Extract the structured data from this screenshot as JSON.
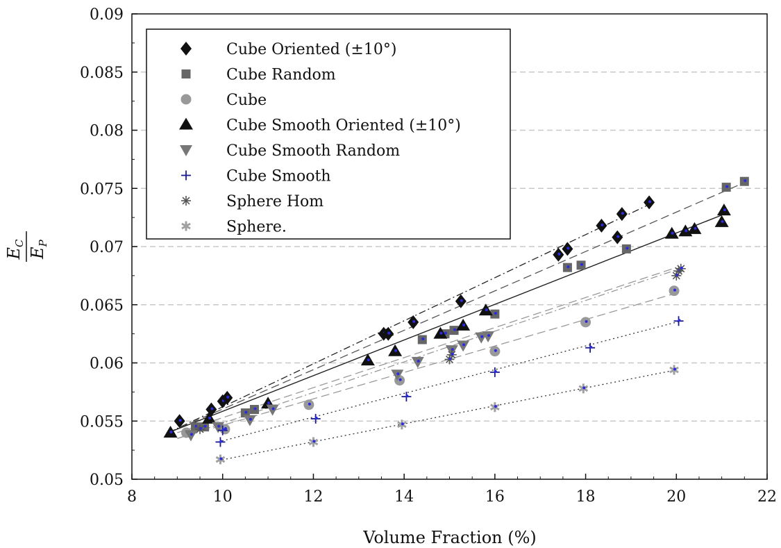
{
  "chart_data": {
    "type": "scatter",
    "xlabel": "Volume Fraction (%)",
    "ylabel_num": "E",
    "ylabel_num_sub": "C",
    "ylabel_den": "E",
    "ylabel_den_sub": "P",
    "xlim": [
      8,
      22
    ],
    "ylim": [
      0.05,
      0.09
    ],
    "xticks": [
      8,
      10,
      12,
      14,
      16,
      18,
      20,
      22
    ],
    "xtick_labels": [
      "8",
      "10",
      "12",
      "14",
      "16",
      "18",
      "20",
      "22"
    ],
    "yticks": [
      0.05,
      0.055,
      0.06,
      0.065,
      0.07,
      0.075,
      0.08,
      0.085,
      0.09
    ],
    "ytick_labels": [
      "0.05",
      "0.055",
      "0.06",
      "0.065",
      "0.07",
      "0.075",
      "0.08",
      "0.085",
      "0.09"
    ],
    "grid": "horizontal-dashed",
    "legend_position": "top-left",
    "series": [
      {
        "name": "Cube Oriented (±10°)",
        "marker": "diamond",
        "color": "#111111",
        "line": {
          "style": "dashdot",
          "from": [
            8.8,
            0.054
          ],
          "to": [
            19.5,
            0.0738
          ]
        },
        "points": [
          [
            9.05,
            0.055
          ],
          [
            9.75,
            0.056
          ],
          [
            10.0,
            0.0567
          ],
          [
            10.1,
            0.057
          ],
          [
            13.55,
            0.0625
          ],
          [
            13.65,
            0.0625
          ],
          [
            14.2,
            0.0635
          ],
          [
            15.25,
            0.0653
          ],
          [
            17.4,
            0.0693
          ],
          [
            17.6,
            0.0698
          ],
          [
            18.35,
            0.0718
          ],
          [
            18.7,
            0.0708
          ],
          [
            18.8,
            0.0728
          ],
          [
            19.4,
            0.0738
          ]
        ]
      },
      {
        "name": "Cube Random",
        "marker": "square",
        "color": "#666666",
        "line": {
          "style": "dashed",
          "from": [
            8.8,
            0.054
          ],
          "to": [
            21.5,
            0.0755
          ]
        },
        "points": [
          [
            9.4,
            0.0545
          ],
          [
            9.6,
            0.0545
          ],
          [
            10.5,
            0.0557
          ],
          [
            10.7,
            0.056
          ],
          [
            14.4,
            0.062
          ],
          [
            14.9,
            0.0625
          ],
          [
            15.1,
            0.0628
          ],
          [
            16.0,
            0.0642
          ],
          [
            17.6,
            0.0682
          ],
          [
            17.9,
            0.0684
          ],
          [
            18.9,
            0.0698
          ],
          [
            21.1,
            0.0751
          ],
          [
            21.5,
            0.0756
          ]
        ]
      },
      {
        "name": "Cube",
        "marker": "circle",
        "color": "#999999",
        "line": {
          "style": "dashed-light",
          "from": [
            9.0,
            0.0535
          ],
          "to": [
            20.0,
            0.066
          ]
        },
        "points": [
          [
            9.2,
            0.054
          ],
          [
            10.05,
            0.0543
          ],
          [
            11.9,
            0.0564
          ],
          [
            13.9,
            0.0585
          ],
          [
            16.0,
            0.061
          ],
          [
            18.0,
            0.0635
          ],
          [
            19.95,
            0.0662
          ]
        ]
      },
      {
        "name": "Cube Smooth Oriented (±10°)",
        "marker": "triangle-up",
        "color": "#111111",
        "line": {
          "style": "solid",
          "from": [
            8.8,
            0.054
          ],
          "to": [
            21.0,
            0.0727
          ]
        },
        "points": [
          [
            8.85,
            0.054
          ],
          [
            9.7,
            0.0552
          ],
          [
            11.0,
            0.0565
          ],
          [
            13.2,
            0.0602
          ],
          [
            13.8,
            0.061
          ],
          [
            14.8,
            0.0625
          ],
          [
            15.3,
            0.0632
          ],
          [
            15.8,
            0.0645
          ],
          [
            19.9,
            0.0711
          ],
          [
            20.2,
            0.0713
          ],
          [
            20.4,
            0.0715
          ],
          [
            21.0,
            0.0721
          ],
          [
            21.05,
            0.0731
          ]
        ]
      },
      {
        "name": "Cube Smooth Random",
        "marker": "triangle-down",
        "color": "#777777",
        "line": {
          "style": "dashdot-light",
          "from": [
            9.0,
            0.0535
          ],
          "to": [
            20.0,
            0.068
          ]
        },
        "points": [
          [
            9.3,
            0.0538
          ],
          [
            9.9,
            0.0545
          ],
          [
            10.6,
            0.0551
          ],
          [
            11.1,
            0.056
          ],
          [
            13.85,
            0.059
          ],
          [
            14.3,
            0.0601
          ],
          [
            15.05,
            0.0611
          ],
          [
            15.3,
            0.0615
          ],
          [
            15.7,
            0.0622
          ],
          [
            15.85,
            0.0623
          ]
        ]
      },
      {
        "name": "Cube Smooth",
        "marker": "plus",
        "color": "#1a1a8c",
        "line": {
          "style": "dotted",
          "from": [
            9.9,
            0.0532
          ],
          "to": [
            20.1,
            0.0636
          ]
        },
        "points": [
          [
            9.95,
            0.0532
          ],
          [
            10.0,
            0.0542
          ],
          [
            12.05,
            0.0552
          ],
          [
            14.05,
            0.0571
          ],
          [
            16.0,
            0.0592
          ],
          [
            18.1,
            0.0613
          ],
          [
            20.05,
            0.0636
          ]
        ]
      },
      {
        "name": "Sphere Hom",
        "marker": "asterisk",
        "color": "#555555",
        "line": {
          "style": "dashed-light",
          "from": [
            9.0,
            0.054
          ],
          "to": [
            20.0,
            0.0682
          ]
        },
        "points": [
          [
            9.5,
            0.0543
          ],
          [
            15.0,
            0.0603
          ],
          [
            15.05,
            0.0607
          ],
          [
            20.0,
            0.0675
          ],
          [
            20.05,
            0.0679
          ],
          [
            20.1,
            0.0681
          ]
        ]
      },
      {
        "name": "Sphere.",
        "marker": "star",
        "color": "#a0a0a0",
        "line": {
          "style": "dotted",
          "from": [
            9.9,
            0.0516
          ],
          "to": [
            20.0,
            0.0594
          ]
        },
        "points": [
          [
            9.95,
            0.0517
          ],
          [
            12.0,
            0.0532
          ],
          [
            13.95,
            0.0547
          ],
          [
            16.0,
            0.0562
          ],
          [
            17.95,
            0.0578
          ],
          [
            19.95,
            0.0594
          ]
        ]
      }
    ]
  }
}
